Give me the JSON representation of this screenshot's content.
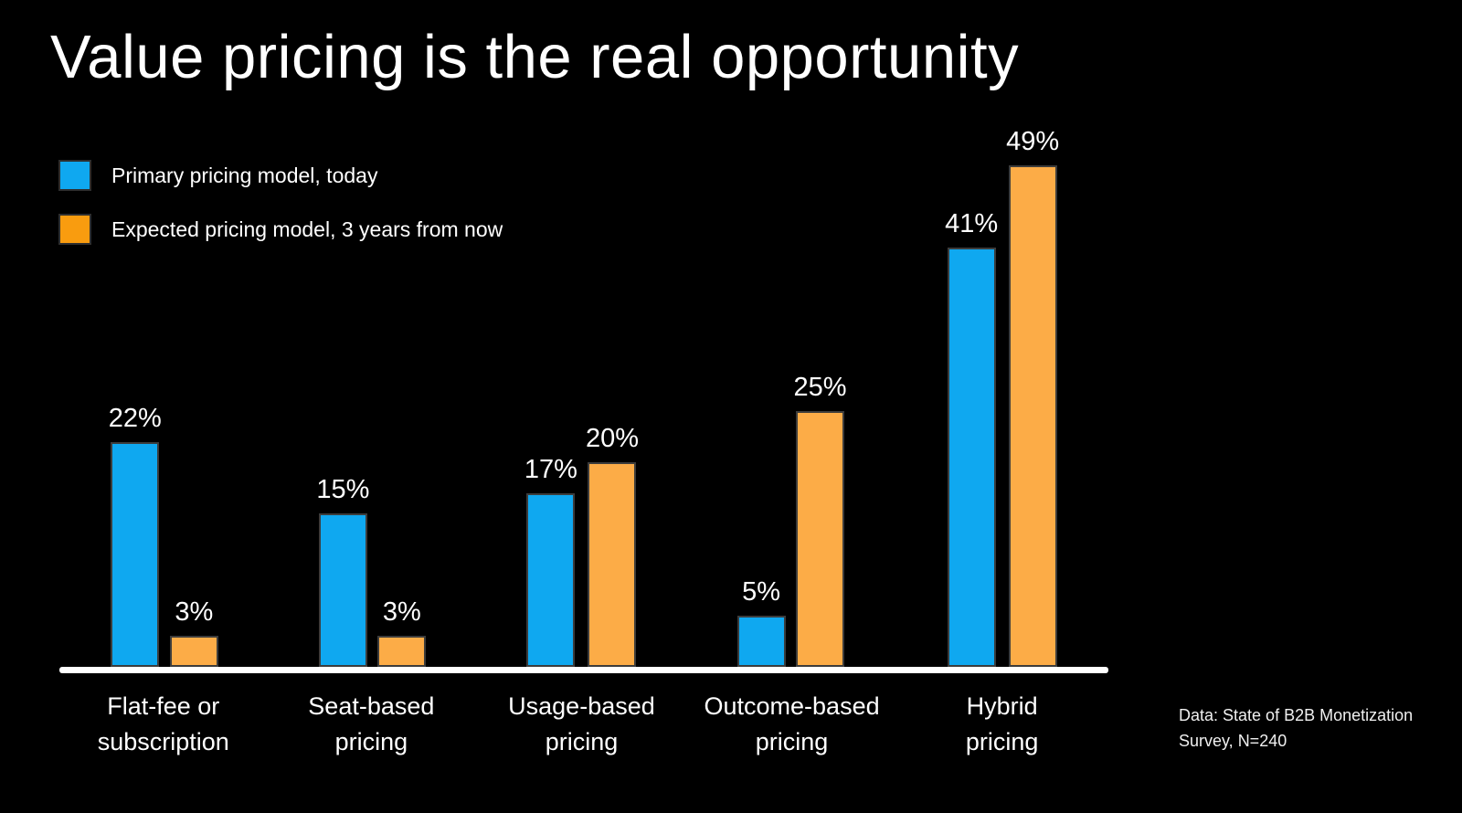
{
  "title": "Value pricing is the real opportunity",
  "legend": {
    "items": [
      {
        "label": "Primary pricing model, today",
        "color": "#0FA8F0"
      },
      {
        "label": "Expected pricing model, 3 years from now",
        "color": "#F99C0F"
      }
    ]
  },
  "source_note": {
    "line1": "Data: State of B2B Monetization",
    "line2": "Survey, N=240"
  },
  "chart_data": {
    "type": "bar",
    "title": "Value pricing is the real opportunity",
    "categories": [
      "Flat-fee or subscription",
      "Seat-based pricing",
      "Usage-based pricing",
      "Outcome-based pricing",
      "Hybrid pricing"
    ],
    "categories_wrapped": [
      "Flat-fee or\nsubscription",
      "Seat-based\npricing",
      "Usage-based\npricing",
      "Outcome-based\npricing",
      "Hybrid\npricing"
    ],
    "series": [
      {
        "name": "Primary pricing model, today",
        "key": "today",
        "color": "#0FA8F0",
        "values": [
          22,
          15,
          17,
          5,
          41
        ],
        "labels": [
          "22%",
          "15%",
          "17%",
          "5%",
          "41%"
        ]
      },
      {
        "name": "Expected pricing model, 3 years from now",
        "key": "future",
        "color": "#FCAC47",
        "values": [
          3,
          3,
          20,
          25,
          49
        ],
        "labels": [
          "3%",
          "3%",
          "20%",
          "25%",
          "49%"
        ]
      }
    ],
    "xlabel": "",
    "ylabel": "",
    "ylim": [
      0,
      50
    ],
    "grid": false,
    "value_labels_shown": true,
    "legend_position": "top-left",
    "axis_line_color": "#FFFFFF",
    "background": "#000000"
  }
}
